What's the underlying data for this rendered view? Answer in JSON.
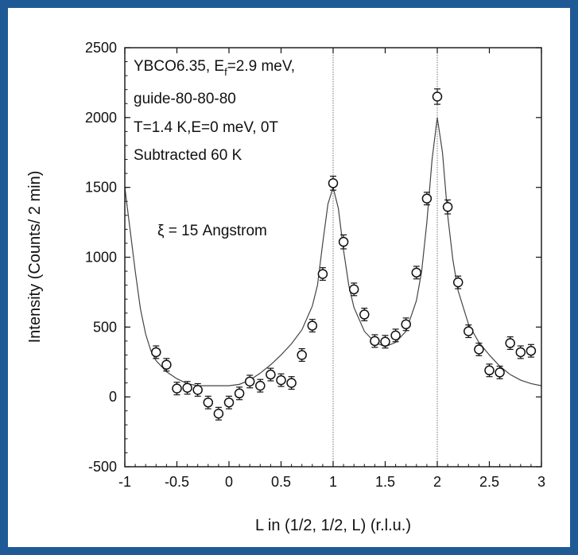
{
  "chart_data": {
    "type": "scatter",
    "xlabel": "L in (1/2, 1/2, L) (r.l.u.)",
    "ylabel": "Intensity (Counts/ 2 min)",
    "xlim": [
      -1,
      3
    ],
    "ylim": [
      -500,
      2500
    ],
    "x_ticks": [
      "-1",
      "-0.5",
      "0",
      "0.5",
      "1",
      "1.5",
      "2",
      "2.5",
      "3"
    ],
    "y_ticks": [
      "-500",
      "0",
      "500",
      "1000",
      "1500",
      "2000",
      "2500"
    ],
    "annotations": {
      "line1_pre": "YBCO6.35, E",
      "line1_sub": "f",
      "line1_post": "=2.9 meV,",
      "line2": "guide-80-80-80",
      "line3": "T=1.4 K,E=0 meV, 0T",
      "line4": "Subtracted 60 K",
      "xi": "ξ = 15 Angstrom"
    },
    "grid": false,
    "vertical_lines_at": [
      1,
      2
    ],
    "series": [
      {
        "marker": "open-circle",
        "x": [
          -0.7,
          -0.6,
          -0.5,
          -0.4,
          -0.3,
          -0.2,
          -0.1,
          0.0,
          0.1,
          0.2,
          0.3,
          0.4,
          0.5,
          0.6,
          0.7,
          0.8,
          0.9,
          1.0,
          1.1,
          1.2,
          1.3,
          1.4,
          1.5,
          1.6,
          1.7,
          1.8,
          1.9,
          2.0,
          2.1,
          2.2,
          2.3,
          2.4,
          2.5,
          2.6,
          2.7,
          2.8,
          2.9
        ],
        "y": [
          320,
          230,
          60,
          65,
          50,
          -40,
          -120,
          -40,
          25,
          110,
          80,
          160,
          120,
          100,
          300,
          510,
          880,
          1530,
          1110,
          770,
          590,
          400,
          395,
          440,
          520,
          890,
          1420,
          2150,
          1360,
          820,
          470,
          340,
          190,
          175,
          385,
          320,
          330
        ],
        "err": [
          45,
          45,
          45,
          45,
          45,
          45,
          45,
          45,
          45,
          45,
          45,
          45,
          45,
          45,
          45,
          45,
          45,
          50,
          50,
          45,
          45,
          45,
          45,
          45,
          45,
          45,
          45,
          55,
          50,
          45,
          45,
          45,
          45,
          45,
          45,
          45,
          45
        ]
      }
    ],
    "fit_curve": {
      "x": [
        -1.0,
        -0.95,
        -0.9,
        -0.85,
        -0.8,
        -0.75,
        -0.7,
        -0.6,
        -0.5,
        -0.4,
        -0.3,
        -0.2,
        -0.1,
        0.0,
        0.1,
        0.2,
        0.3,
        0.4,
        0.5,
        0.6,
        0.7,
        0.8,
        0.85,
        0.9,
        0.95,
        1.0,
        1.05,
        1.1,
        1.15,
        1.2,
        1.3,
        1.4,
        1.5,
        1.6,
        1.7,
        1.8,
        1.85,
        1.9,
        1.95,
        2.0,
        2.05,
        2.1,
        2.15,
        2.2,
        2.3,
        2.4,
        2.5,
        2.6,
        2.7,
        2.8,
        2.9,
        3.0
      ],
      "y": [
        1500,
        1200,
        900,
        630,
        450,
        330,
        260,
        180,
        130,
        95,
        80,
        80,
        80,
        80,
        90,
        120,
        170,
        230,
        300,
        380,
        480,
        650,
        800,
        1100,
        1380,
        1500,
        1350,
        1050,
        800,
        640,
        470,
        390,
        360,
        390,
        470,
        690,
        900,
        1250,
        1700,
        2000,
        1750,
        1300,
        980,
        760,
        520,
        390,
        300,
        220,
        160,
        120,
        95,
        80
      ]
    }
  }
}
